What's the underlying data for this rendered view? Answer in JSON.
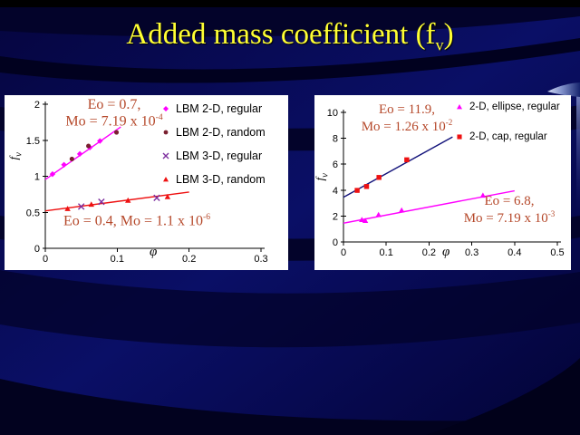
{
  "slide": {
    "title_pre": "Added mass coefficient (f",
    "title_sub": "v",
    "title_post": ")",
    "colors": {
      "title": "#ffff33",
      "annotation": "#b5482a",
      "panel": "#ffffff",
      "axis": "#000000",
      "background_base": "#0a0f66",
      "background_dark": "#03032a"
    }
  },
  "chart_data": [
    {
      "type": "scatter",
      "xlabel": "φ",
      "ylabel_base": "f",
      "ylabel_sub": "v",
      "xlim": [
        0,
        0.3
      ],
      "ylim": [
        0,
        2
      ],
      "grid": false,
      "legend_position": "inside top-right",
      "x_ticks": [
        {
          "v": 0,
          "label": "0"
        },
        {
          "v": 0.1,
          "label": "0.1"
        },
        {
          "v": 0.2,
          "label": "0.2"
        },
        {
          "v": 0.3,
          "label": "0.3"
        }
      ],
      "y_ticks": [
        {
          "v": 0,
          "label": "0"
        },
        {
          "v": 0.5,
          "label": "0.5"
        },
        {
          "v": 1,
          "label": "1"
        },
        {
          "v": 1.5,
          "label": "1.5"
        },
        {
          "v": 2,
          "label": "2"
        }
      ],
      "series": [
        {
          "name": "LBM 2-D, regular",
          "marker": "diamond",
          "color": "#ff00ff",
          "points": [
            [
              0.01,
              1.03
            ],
            [
              0.026,
              1.16
            ],
            [
              0.048,
              1.31
            ],
            [
              0.062,
              1.4
            ],
            [
              0.076,
              1.49
            ]
          ]
        },
        {
          "name": "LBM 2-D, random",
          "marker": "dot",
          "color": "#7a2030",
          "points": [
            [
              0.037,
              1.24
            ],
            [
              0.06,
              1.42
            ],
            [
              0.099,
              1.61
            ]
          ]
        },
        {
          "name": "LBM 3-D, regular",
          "marker": "cross",
          "color": "#7d2e9e",
          "points": [
            [
              0.05,
              0.58
            ],
            [
              0.078,
              0.645
            ],
            [
              0.155,
              0.7
            ]
          ]
        },
        {
          "name": "LBM 3-D, random",
          "marker": "triangle",
          "color": "#ee1111",
          "points": [
            [
              0.031,
              0.55
            ],
            [
              0.064,
              0.61
            ],
            [
              0.115,
              0.665
            ],
            [
              0.17,
              0.715
            ]
          ]
        }
      ],
      "trend_lines": [
        {
          "color": "#ff00ff",
          "from": [
            0,
            0.955
          ],
          "to": [
            0.105,
            1.685
          ]
        },
        {
          "color": "#ee1111",
          "from": [
            0,
            0.52
          ],
          "to": [
            0.2,
            0.78
          ]
        }
      ],
      "annotations": [
        {
          "l1": "Eo = 0.7,",
          "l2": "Mo = 7.19 x 10",
          "l2_sup": "-4"
        },
        {
          "l1": "Eo = 0.4, Mo = 1.1 x 10",
          "l1_sup": "-6"
        }
      ]
    },
    {
      "type": "scatter",
      "xlabel": "φ",
      "ylabel_base": "f",
      "ylabel_sub": "v",
      "xlim": [
        0,
        0.5
      ],
      "ylim": [
        0,
        10
      ],
      "grid": false,
      "legend_position": "inside top-right",
      "x_ticks": [
        {
          "v": 0,
          "label": "0"
        },
        {
          "v": 0.1,
          "label": "0.1"
        },
        {
          "v": 0.2,
          "label": "0.2"
        },
        {
          "v": 0.3,
          "label": "0.3"
        },
        {
          "v": 0.4,
          "label": "0.4"
        },
        {
          "v": 0.5,
          "label": "0.5"
        }
      ],
      "y_ticks": [
        {
          "v": 0,
          "label": "0"
        },
        {
          "v": 2,
          "label": "2"
        },
        {
          "v": 4,
          "label": "4"
        },
        {
          "v": 6,
          "label": "6"
        },
        {
          "v": 8,
          "label": "8"
        },
        {
          "v": 10,
          "label": "10"
        }
      ],
      "series": [
        {
          "name": "2-D, ellipse, regular",
          "marker": "triangle",
          "color": "#ff00ff",
          "points": [
            [
              0.043,
              1.72
            ],
            [
              0.051,
              1.65
            ],
            [
              0.082,
              2.1
            ],
            [
              0.136,
              2.45
            ],
            [
              0.326,
              3.6
            ]
          ]
        },
        {
          "name": "2-D, cap, regular",
          "marker": "square",
          "color": "#ee1111",
          "points": [
            [
              0.032,
              3.98
            ],
            [
              0.054,
              4.28
            ],
            [
              0.083,
              4.98
            ],
            [
              0.148,
              6.34
            ]
          ]
        }
      ],
      "trend_lines": [
        {
          "color": "#12127a",
          "from": [
            0,
            3.45
          ],
          "to": [
            0.255,
            8.1
          ]
        },
        {
          "color": "#ff00ff",
          "from": [
            0,
            1.45
          ],
          "to": [
            0.4,
            3.95
          ]
        }
      ],
      "annotations": [
        {
          "l1": "Eo = 11.9,",
          "l2": "Mo = 1.26 x 10",
          "l2_sup": "-2"
        },
        {
          "l1": "Eo = 6.8,",
          "l2": "Mo = 7.19 x 10",
          "l2_sup": "-3"
        }
      ]
    }
  ]
}
